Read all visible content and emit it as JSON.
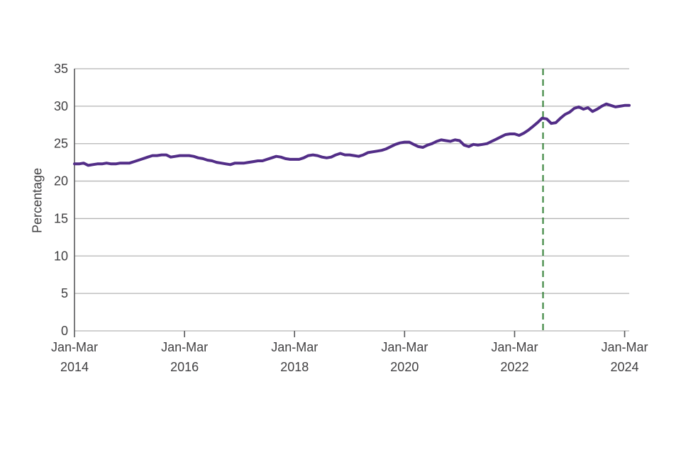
{
  "chart_data": {
    "type": "line",
    "title": "",
    "ylabel": "Percentage",
    "ylim": [
      0,
      35
    ],
    "y_ticks": [
      0,
      5,
      10,
      15,
      20,
      25,
      30,
      35
    ],
    "grid": true,
    "legend_position": "none",
    "x_ticks": [
      {
        "label_line1": "Jan-Mar",
        "label_line2": "2014",
        "index": 0
      },
      {
        "label_line1": "Jan-Mar",
        "label_line2": "2016",
        "index": 24
      },
      {
        "label_line1": "Jan-Mar",
        "label_line2": "2018",
        "index": 48
      },
      {
        "label_line1": "Jan-Mar",
        "label_line2": "2020",
        "index": 72
      },
      {
        "label_line1": "Jan-Mar",
        "label_line2": "2022",
        "index": 96
      },
      {
        "label_line1": "Jan-Mar",
        "label_line2": "2024",
        "index": 120
      }
    ],
    "series": [
      {
        "name": "percentage-line",
        "color": "#522d87",
        "values": [
          22.3,
          22.3,
          22.4,
          22.1,
          22.2,
          22.3,
          22.3,
          22.4,
          22.3,
          22.3,
          22.4,
          22.4,
          22.4,
          22.6,
          22.8,
          23.0,
          23.2,
          23.4,
          23.4,
          23.5,
          23.5,
          23.2,
          23.3,
          23.4,
          23.4,
          23.4,
          23.3,
          23.1,
          23.0,
          22.8,
          22.7,
          22.5,
          22.4,
          22.3,
          22.2,
          22.4,
          22.4,
          22.4,
          22.5,
          22.6,
          22.7,
          22.7,
          22.9,
          23.1,
          23.3,
          23.2,
          23.0,
          22.9,
          22.9,
          22.9,
          23.1,
          23.4,
          23.5,
          23.4,
          23.2,
          23.1,
          23.2,
          23.5,
          23.7,
          23.5,
          23.5,
          23.4,
          23.3,
          23.5,
          23.8,
          23.9,
          24.0,
          24.1,
          24.3,
          24.6,
          24.9,
          25.1,
          25.2,
          25.2,
          24.9,
          24.6,
          24.5,
          24.8,
          25.0,
          25.3,
          25.5,
          25.4,
          25.3,
          25.5,
          25.4,
          24.8,
          24.6,
          24.9,
          24.8,
          24.9,
          25.0,
          25.3,
          25.6,
          25.9,
          26.2,
          26.3,
          26.3,
          26.1,
          26.4,
          26.8,
          27.3,
          27.8,
          28.4,
          28.3,
          27.7,
          27.8,
          28.4,
          28.9,
          29.2,
          29.7,
          29.9,
          29.6,
          29.8,
          29.3,
          29.6,
          30.0,
          30.3,
          30.1,
          29.9,
          30.0,
          30.1,
          30.1
        ]
      }
    ],
    "annotations": {
      "vline": {
        "index": 102.2,
        "color": "#2e7d32",
        "style": "dashed"
      }
    },
    "colors": {
      "grid": "#b4b4b4",
      "axis": "#58595b",
      "text": "#414042"
    }
  }
}
